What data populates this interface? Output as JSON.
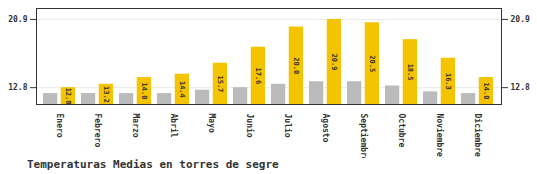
{
  "chart_data": {
    "type": "bar",
    "title": "Temperaturas Medias en torres de segre",
    "categories": [
      "Enero",
      "Febrero",
      "Marzo",
      "Abril",
      "Mayo",
      "Junio",
      "Julio",
      "Agosto",
      "Septiembre",
      "Octubre",
      "Noviembre",
      "Diciembre"
    ],
    "series": [
      {
        "color": "#BBBBBB",
        "values": [
          12.1,
          12.1,
          12.1,
          12.1,
          12.5,
          12.8,
          13.2,
          13.5,
          13.5,
          13.0,
          12.3,
          12.1
        ]
      },
      {
        "color": "#F5C400",
        "values": [
          12.8,
          13.2,
          14.0,
          14.4,
          15.7,
          17.6,
          20.0,
          20.9,
          20.5,
          18.5,
          16.3,
          14.0
        ],
        "value_labels": [
          "12.8",
          "13.2",
          "14.0",
          "14.4",
          "15.7",
          "17.6",
          "20.0",
          "20.9",
          "20.5",
          "18.5",
          "16.3",
          "14.0"
        ],
        "data_labels": true
      }
    ],
    "ylim": [
      10.8,
      22.2
    ],
    "yticks": [
      12.8,
      20.9
    ],
    "grid": true
  }
}
